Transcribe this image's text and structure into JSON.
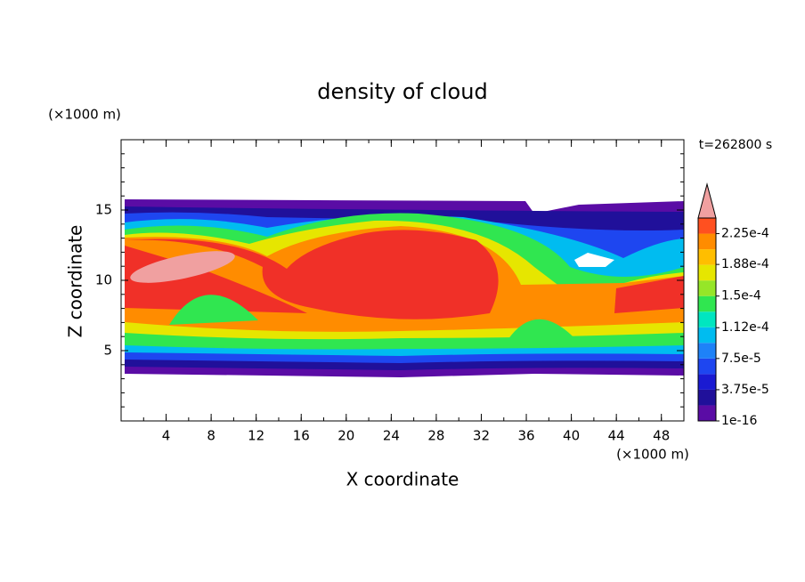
{
  "chart_data": {
    "type": "contour",
    "title": "density of cloud",
    "x_label": "X coordinate",
    "y_label": "Z coordinate",
    "x_unit": "(×1000 m)",
    "y_unit": "(×1000 m)",
    "time_label": "t=262800 s",
    "xlim": [
      0,
      50
    ],
    "ylim": [
      0,
      20
    ],
    "xticks": [
      4,
      8,
      12,
      16,
      20,
      24,
      28,
      32,
      36,
      40,
      44,
      48
    ],
    "yticks": [
      5,
      10,
      15
    ],
    "colorbar": {
      "clim": [
        1e-16,
        0.00024375
      ],
      "ticks": [
        {
          "value": 1e-16,
          "label": "1e-16"
        },
        {
          "value": 3.75e-05,
          "label": "3.75e-5"
        },
        {
          "value": 7.5e-05,
          "label": "7.5e-5"
        },
        {
          "value": 0.000112,
          "label": "1.12e-4"
        },
        {
          "value": 0.00015,
          "label": "1.5e-4"
        },
        {
          "value": 0.000188,
          "label": "1.88e-4"
        },
        {
          "value": 0.000225,
          "label": "2.25e-4"
        }
      ],
      "colors": [
        "#5a0ca5",
        "#20109a",
        "#1a1ad2",
        "#1e46f0",
        "#1e82f8",
        "#00bcf0",
        "#00e6c0",
        "#30e650",
        "#96e628",
        "#e6e600",
        "#ffbe00",
        "#ff8c00",
        "#ff5020",
        "#f03028"
      ],
      "extend_color": "#f0a0a0"
    }
  }
}
